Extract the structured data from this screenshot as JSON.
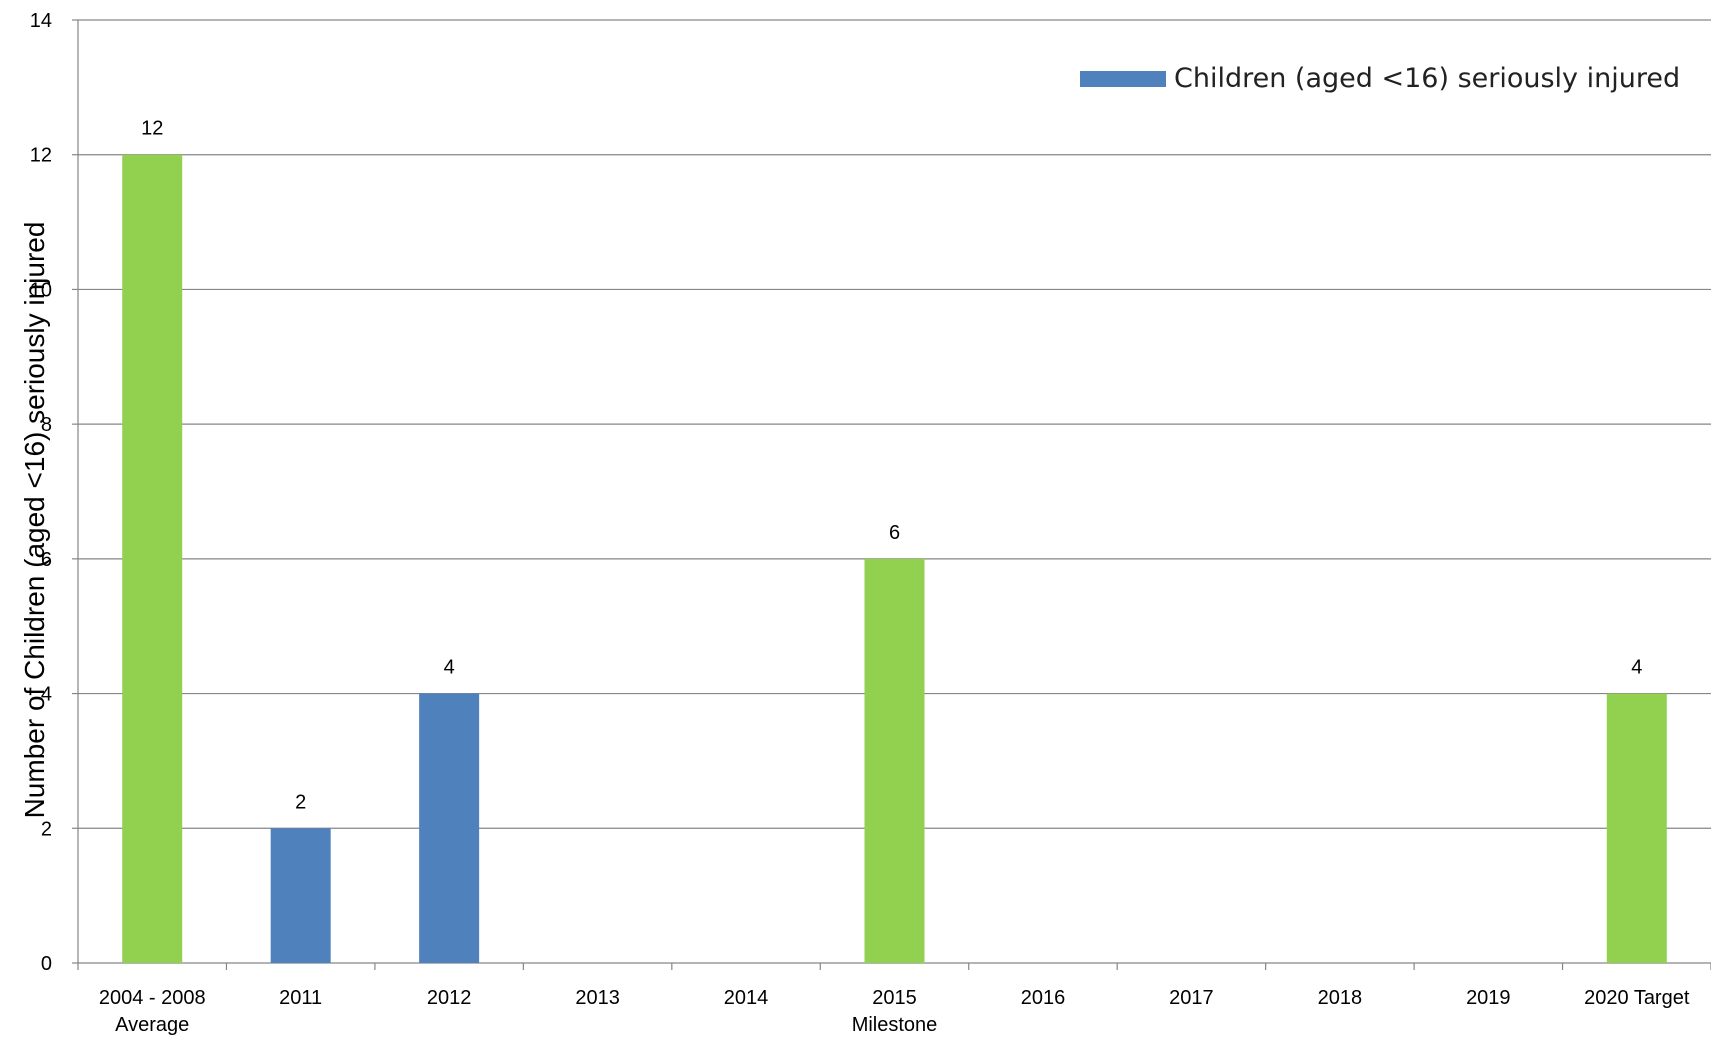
{
  "chart_data": {
    "type": "bar",
    "categories": [
      "2004 - 2008\nAverage",
      "2011",
      "2012",
      "2013",
      "2014",
      "2015\nMilestone",
      "2016",
      "2017",
      "2018",
      "2019",
      "2020 Target"
    ],
    "values": [
      12,
      2,
      4,
      null,
      null,
      6,
      null,
      null,
      null,
      null,
      4
    ],
    "bar_colors": [
      "#92d050",
      "#4f81bd",
      "#4f81bd",
      null,
      null,
      "#92d050",
      null,
      null,
      null,
      null,
      "#92d050"
    ],
    "data_labels": [
      "12",
      "2",
      "4",
      "",
      "",
      "6",
      "",
      "",
      "",
      "",
      "4"
    ],
    "ylabel": "Number of Children (aged <16) seriously injured",
    "xlabel": "",
    "ylim": [
      0,
      14
    ],
    "yticks": [
      0,
      2,
      4,
      6,
      8,
      10,
      12,
      14
    ],
    "grid": true,
    "legend": {
      "position": "top-right",
      "entries": [
        {
          "name": "Children (aged <16) seriously injured",
          "color": "#4f81bd"
        }
      ]
    }
  }
}
